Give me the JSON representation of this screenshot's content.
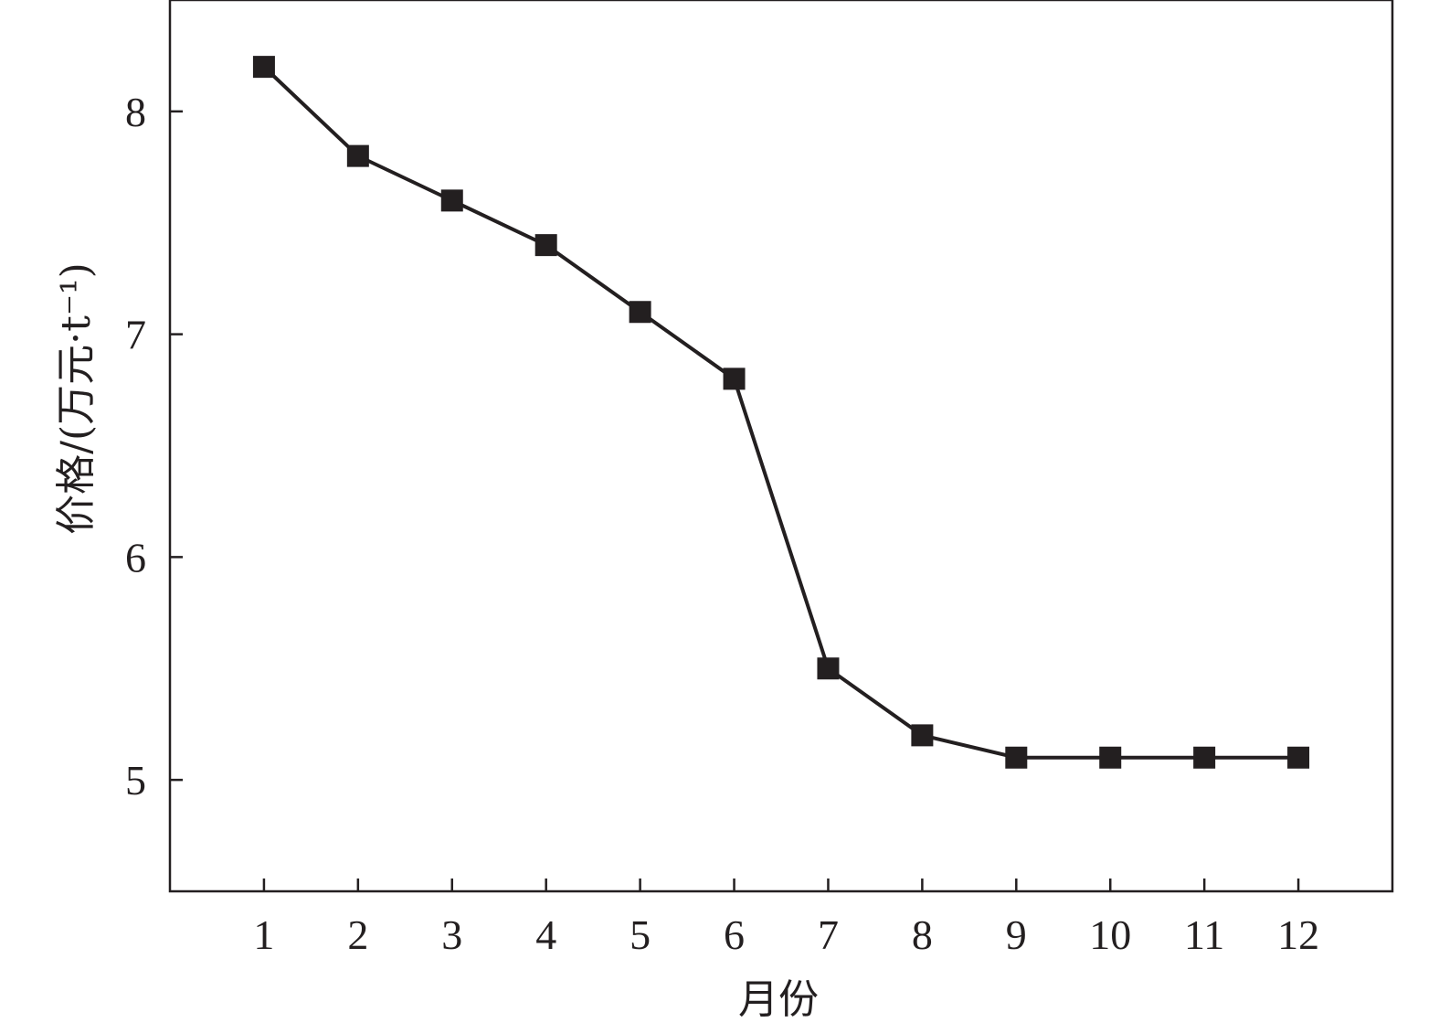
{
  "chart_data": {
    "type": "line",
    "x": [
      1,
      2,
      3,
      4,
      5,
      6,
      7,
      8,
      9,
      10,
      11,
      12
    ],
    "series": [
      {
        "values": [
          8.2,
          7.8,
          7.6,
          7.4,
          7.1,
          6.8,
          5.5,
          5.2,
          5.1,
          5.1,
          5.1,
          5.1
        ],
        "marker": "square"
      }
    ],
    "xlabel": "月份",
    "ylabel": "价格/(万元·t⁻¹)",
    "x_ticks": [
      "1",
      "2",
      "3",
      "4",
      "5",
      "6",
      "7",
      "8",
      "9",
      "10",
      "11",
      "12"
    ],
    "y_ticks": [
      "5",
      "6",
      "7",
      "8"
    ],
    "xlim": [
      0,
      13
    ],
    "ylim": [
      4.5,
      8.5
    ],
    "grid": false,
    "legend": "none",
    "color": "#231f20"
  }
}
